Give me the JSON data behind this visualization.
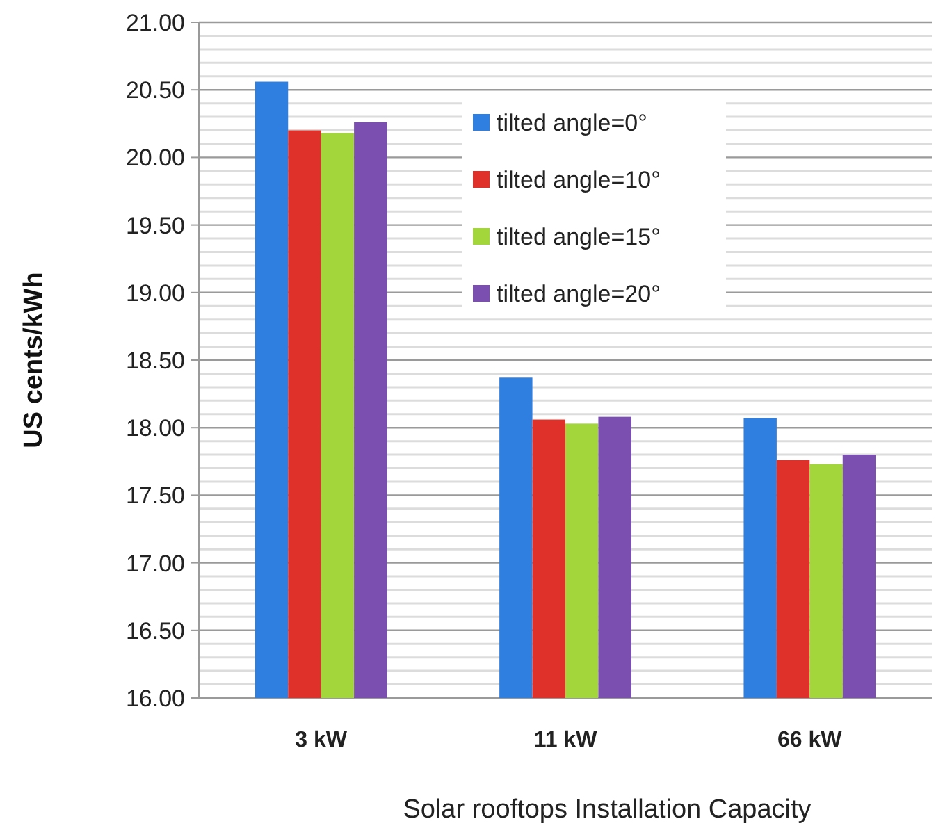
{
  "chart_data": {
    "type": "bar",
    "xlabel": "Solar rooftops Installation Capacity",
    "ylabel": "US cents/kWh",
    "categories": [
      "3 kW",
      "11 kW",
      "66 kW"
    ],
    "series": [
      {
        "name": "tilted angle=0°",
        "color": "#2e7fe0",
        "values": [
          20.56,
          18.37,
          18.07
        ]
      },
      {
        "name": "tilted angle=10°",
        "color": "#e0302a",
        "values": [
          20.2,
          18.06,
          17.76
        ]
      },
      {
        "name": "tilted angle=15°",
        "color": "#a3d63a",
        "values": [
          20.18,
          18.03,
          17.73
        ]
      },
      {
        "name": "tilted angle=20°",
        "color": "#7a4fb0",
        "values": [
          20.26,
          18.08,
          17.8
        ]
      }
    ],
    "ylim": [
      16,
      21
    ],
    "yticks": [
      {
        "value": 16,
        "label": "16.00"
      },
      {
        "value": 16.1,
        "label": null
      },
      {
        "value": 16.2,
        "label": null
      },
      {
        "value": 16.3,
        "label": null
      },
      {
        "value": 16.4,
        "label": null
      },
      {
        "value": 16.5,
        "label": "16.50"
      },
      {
        "value": 16.6,
        "label": null
      },
      {
        "value": 16.7,
        "label": null
      },
      {
        "value": 16.8,
        "label": null
      },
      {
        "value": 16.9,
        "label": null
      },
      {
        "value": 17,
        "label": "17.00"
      },
      {
        "value": 17.1,
        "label": null
      },
      {
        "value": 17.2,
        "label": null
      },
      {
        "value": 17.3,
        "label": null
      },
      {
        "value": 17.4,
        "label": null
      },
      {
        "value": 17.5,
        "label": "17.50"
      },
      {
        "value": 17.6,
        "label": null
      },
      {
        "value": 17.7,
        "label": null
      },
      {
        "value": 17.8,
        "label": null
      },
      {
        "value": 17.9,
        "label": null
      },
      {
        "value": 18,
        "label": "18.00"
      },
      {
        "value": 18.1,
        "label": null
      },
      {
        "value": 18.2,
        "label": null
      },
      {
        "value": 18.3,
        "label": null
      },
      {
        "value": 18.4,
        "label": null
      },
      {
        "value": 18.5,
        "label": "18.50"
      },
      {
        "value": 18.6,
        "label": null
      },
      {
        "value": 18.7,
        "label": null
      },
      {
        "value": 18.8,
        "label": null
      },
      {
        "value": 18.9,
        "label": null
      },
      {
        "value": 19,
        "label": "19.00"
      },
      {
        "value": 19.1,
        "label": null
      },
      {
        "value": 19.2,
        "label": null
      },
      {
        "value": 19.3,
        "label": null
      },
      {
        "value": 19.4,
        "label": null
      },
      {
        "value": 19.5,
        "label": "19.50"
      },
      {
        "value": 19.6,
        "label": null
      },
      {
        "value": 19.7,
        "label": null
      },
      {
        "value": 19.8,
        "label": null
      },
      {
        "value": 19.9,
        "label": null
      },
      {
        "value": 20,
        "label": "20.00"
      },
      {
        "value": 20.1,
        "label": null
      },
      {
        "value": 20.2,
        "label": null
      },
      {
        "value": 20.3,
        "label": null
      },
      {
        "value": 20.4,
        "label": null
      },
      {
        "value": 20.5,
        "label": "20.50"
      },
      {
        "value": 20.6,
        "label": null
      },
      {
        "value": 20.7,
        "label": null
      },
      {
        "value": 20.8,
        "label": null
      },
      {
        "value": 20.9,
        "label": null
      },
      {
        "value": 21,
        "label": "21.00"
      }
    ],
    "grid": "y",
    "legend": "top right"
  }
}
